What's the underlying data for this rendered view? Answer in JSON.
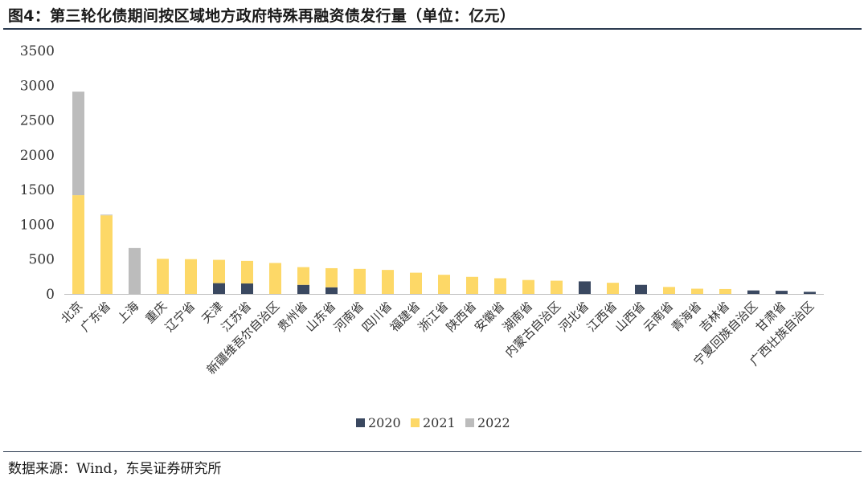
{
  "title": "图4：第三轮化债期间按区域地方政府特殊再融资债发行量（单位：亿元）",
  "source": "数据来源：Wind，东吴证券研究所",
  "colors": {
    "2020": "#3a4860",
    "2021": "#fdd867",
    "2022": "#bcbcbc"
  },
  "chart_data": {
    "type": "bar",
    "stacked": true,
    "title": "第三轮化债期间按区域地方政府特殊再融资债发行量（单位：亿元）",
    "ylim": [
      0,
      3500
    ],
    "yticks": [
      0,
      500,
      1000,
      1500,
      2000,
      2500,
      3000,
      3500
    ],
    "grid": false,
    "legend_position": "bottom",
    "categories": [
      "北京",
      "广东省",
      "上海",
      "重庆",
      "辽宁省",
      "天津",
      "江苏省",
      "新疆维吾尔自治区",
      "贵州省",
      "山东省",
      "河南省",
      "四川省",
      "福建省",
      "浙江省",
      "陕西省",
      "安徽省",
      "湖南省",
      "内蒙古自治区",
      "河北省",
      "江西省",
      "山西省",
      "云南省",
      "青海省",
      "吉林省",
      "宁夏回族自治区",
      "甘肃省",
      "广西壮族自治区"
    ],
    "series": [
      {
        "name": "2020",
        "values": [
          0,
          0,
          0,
          0,
          0,
          155,
          150,
          0,
          130,
          95,
          0,
          0,
          0,
          0,
          0,
          0,
          0,
          0,
          180,
          0,
          130,
          0,
          0,
          0,
          50,
          45,
          30
        ]
      },
      {
        "name": "2021",
        "values": [
          1420,
          1130,
          0,
          505,
          500,
          335,
          325,
          445,
          255,
          275,
          360,
          345,
          305,
          275,
          245,
          225,
          200,
          190,
          0,
          160,
          0,
          100,
          75,
          70,
          0,
          0,
          0
        ]
      },
      {
        "name": "2022",
        "values": [
          1490,
          10,
          660,
          0,
          0,
          0,
          0,
          0,
          0,
          0,
          0,
          0,
          0,
          0,
          0,
          0,
          0,
          0,
          0,
          0,
          0,
          0,
          0,
          0,
          0,
          0,
          0
        ]
      }
    ]
  }
}
